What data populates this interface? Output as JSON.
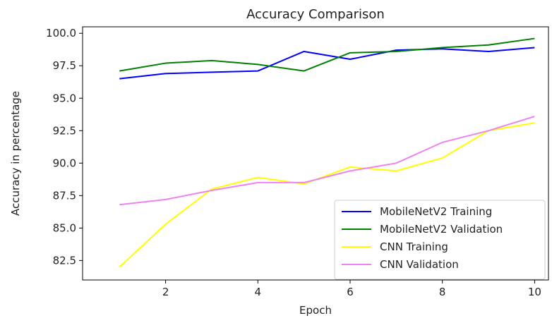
{
  "chart_data": {
    "type": "line",
    "title": "Accuracy Comparison",
    "xlabel": "Epoch",
    "ylabel": "Accuracy in percentage",
    "x": [
      1,
      2,
      3,
      4,
      5,
      6,
      7,
      8,
      9,
      10
    ],
    "xlim": [
      0.2,
      10.3
    ],
    "ylim": [
      81.0,
      100.5
    ],
    "xticks": [
      2,
      4,
      6,
      8,
      10
    ],
    "yticks": [
      82.5,
      85.0,
      87.5,
      90.0,
      92.5,
      95.0,
      97.5,
      100.0
    ],
    "xtick_labels": [
      "2",
      "4",
      "6",
      "8",
      "10"
    ],
    "ytick_labels": [
      "82.5",
      "85.0",
      "87.5",
      "90.0",
      "92.5",
      "95.0",
      "97.5",
      "100.0"
    ],
    "grid": false,
    "legend_position": "lower-right",
    "series": [
      {
        "name": "MobileNetV2 Training",
        "color": "#0000ff",
        "values": [
          96.5,
          96.9,
          97.0,
          97.1,
          98.6,
          98.0,
          98.7,
          98.8,
          98.6,
          98.9
        ]
      },
      {
        "name": "MobileNetV2 Validation",
        "color": "#008000",
        "values": [
          97.1,
          97.7,
          97.9,
          97.6,
          97.1,
          98.5,
          98.6,
          98.9,
          99.1,
          99.6
        ]
      },
      {
        "name": "CNN Training",
        "color": "#ffff00",
        "values": [
          82.0,
          85.3,
          88.0,
          88.9,
          88.4,
          89.7,
          89.4,
          90.4,
          92.5,
          93.1
        ]
      },
      {
        "name": "CNN Validation",
        "color": "#ee82ee",
        "values": [
          86.8,
          87.2,
          87.9,
          88.5,
          88.5,
          89.4,
          90.0,
          91.6,
          92.5,
          93.6
        ]
      }
    ]
  }
}
